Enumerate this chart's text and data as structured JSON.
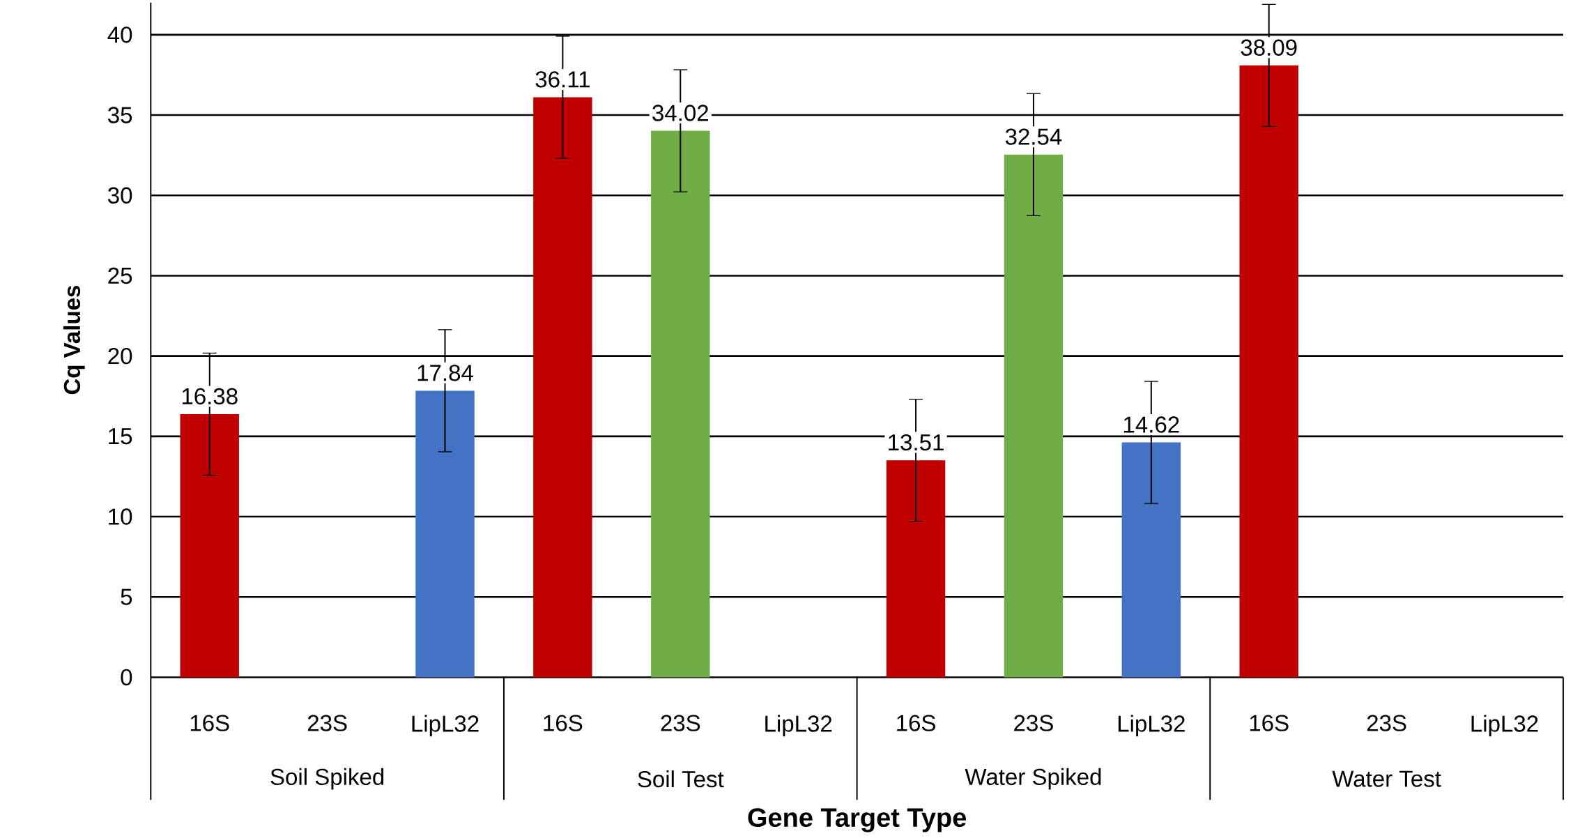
{
  "chart_data": {
    "type": "bar",
    "categories": [
      "16S",
      "23S",
      "LipL32",
      "16S",
      "23S",
      "LipL32",
      "16S",
      "23S",
      "LipL32",
      "16S",
      "23S",
      "LipL32"
    ],
    "values": [
      16.38,
      null,
      17.84,
      36.11,
      34.02,
      null,
      13.51,
      32.54,
      14.62,
      38.09,
      null,
      null
    ],
    "colors": [
      "#c00000",
      "#70ad47",
      "#4472c4",
      "#c00000",
      "#70ad47",
      "#4472c4",
      "#c00000",
      "#70ad47",
      "#4472c4",
      "#c00000",
      "#70ad47",
      "#4472c4"
    ],
    "errors": [
      3.8,
      null,
      3.8,
      3.8,
      3.8,
      null,
      3.8,
      3.8,
      3.8,
      3.8,
      null,
      null
    ],
    "data_labels": true,
    "xlabel": "Gene Target Type",
    "ylabel": "Cq Values",
    "annotations": [
      "Soil Spiked",
      "Soil Test",
      "Water Spiked",
      "Water Test"
    ],
    "ylim": [
      0,
      42
    ],
    "yticks": [
      0,
      5,
      10,
      15,
      20,
      25,
      30,
      35,
      40
    ],
    "grid": "y"
  }
}
